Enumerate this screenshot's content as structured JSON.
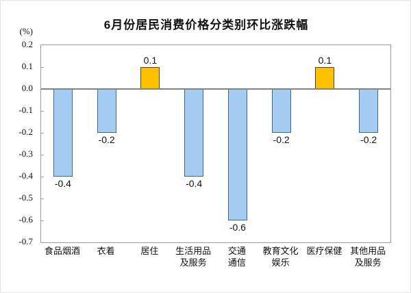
{
  "figure": {
    "title": "6月份居民消费价格分类别环比涨跌幅",
    "unit_label": "(%)"
  },
  "chart_data": {
    "type": "bar",
    "title": "6月份居民消费价格分类别环比涨跌幅",
    "unit": "(%)",
    "categories": [
      "食品烟酒",
      "衣着",
      "居住",
      "生活用品\n及服务",
      "交通\n通信",
      "教育文化\n娱乐",
      "医疗保健",
      "其他用品\n及服务"
    ],
    "values": [
      -0.4,
      -0.2,
      0.1,
      -0.4,
      -0.6,
      -0.2,
      0.1,
      -0.2
    ],
    "data_labels": [
      "-0.4",
      "-0.2",
      "0.1",
      "-0.4",
      "-0.6",
      "-0.2",
      "0.1",
      "-0.2"
    ],
    "y_tick_labels": [
      "0.2",
      "0.1",
      "0.0",
      "-0.1",
      "-0.2",
      "-0.3",
      "-0.4",
      "-0.5",
      "-0.6",
      "-0.7"
    ],
    "ylim": [
      -0.7,
      0.2
    ],
    "xlabel": "",
    "ylabel": "(%)",
    "grid": false,
    "legend": false,
    "colors": {
      "negative_fill": "#A5CDF3",
      "negative_border": "#3C688F",
      "positive_fill": "#FFC000",
      "positive_border": "#4D4528",
      "zero_line": "#828282",
      "plot_border": "#9C9C9C",
      "text": "#111111"
    }
  }
}
